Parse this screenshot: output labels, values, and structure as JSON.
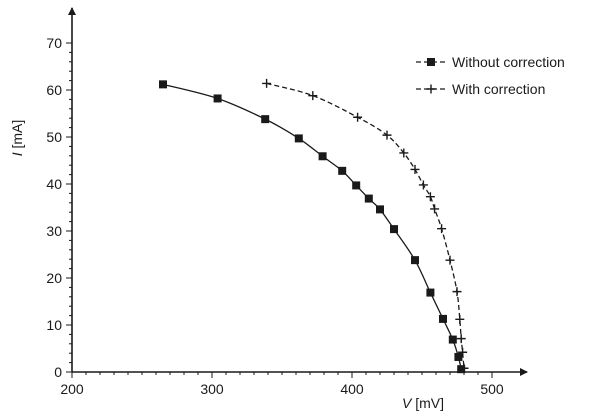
{
  "chart_data": {
    "type": "line",
    "title": "",
    "xlabel": {
      "symbol": "V",
      "unit": " [mV]"
    },
    "ylabel": {
      "symbol": "I",
      "unit": " [mA]"
    },
    "xlim": [
      200,
      525
    ],
    "ylim": [
      0,
      75
    ],
    "xticks": [
      200,
      300,
      400,
      500
    ],
    "yticks": [
      0,
      10,
      20,
      30,
      40,
      50,
      60,
      70
    ],
    "grid": false,
    "legend_position": "top-right",
    "series": [
      {
        "name": "Without correction",
        "marker": "square",
        "color": "#1a1a1a",
        "x": [
          265,
          304,
          338,
          362,
          379,
          393,
          403,
          412,
          420,
          430,
          445,
          456,
          465,
          472,
          476,
          478
        ],
        "y": [
          61.2,
          58.2,
          53.8,
          49.7,
          45.9,
          42.8,
          39.7,
          36.9,
          34.6,
          30.4,
          23.8,
          16.9,
          11.3,
          6.9,
          3.2,
          0.6
        ]
      },
      {
        "name": "With correction",
        "marker": "plus",
        "color": "#1a1a1a",
        "x": [
          339,
          372,
          404,
          425,
          437,
          445,
          451,
          456,
          459,
          464,
          470,
          475,
          477,
          478,
          479,
          480
        ],
        "y": [
          61.4,
          58.8,
          54.2,
          50.4,
          46.6,
          43.1,
          39.8,
          37.3,
          34.7,
          30.5,
          23.8,
          17.1,
          11.2,
          7.1,
          4.2,
          0.8
        ]
      }
    ]
  }
}
